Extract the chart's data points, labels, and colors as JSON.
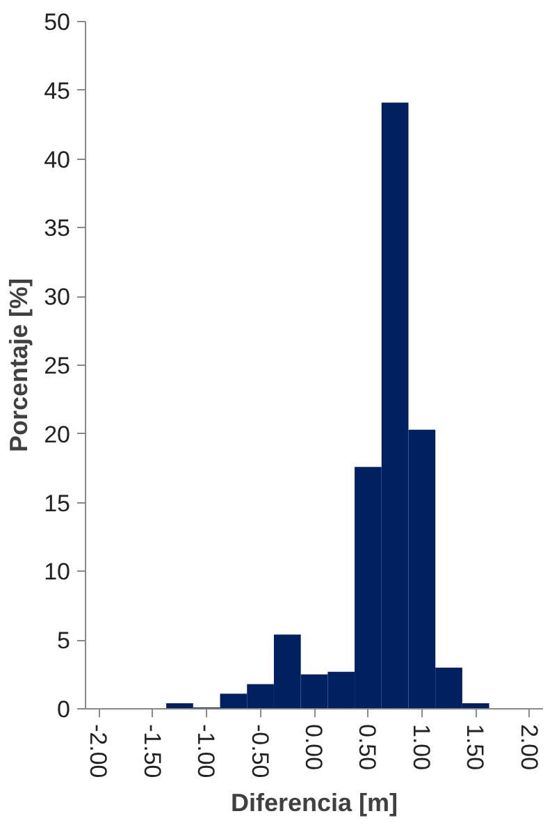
{
  "chart_data": {
    "type": "histogram",
    "xlabel": "Diferencia [m]",
    "ylabel": "Porcentaje [%]",
    "bins": [
      -2.125,
      -1.875,
      -1.625,
      -1.375,
      -1.125,
      -0.875,
      -0.625,
      -0.375,
      -0.125,
      0.125,
      0.375,
      0.625,
      0.875,
      1.125,
      1.375,
      1.625,
      1.875,
      2.125
    ],
    "values": [
      0,
      0,
      0,
      0.4,
      0.1,
      1.1,
      1.8,
      5.4,
      2.5,
      2.7,
      17.6,
      44.1,
      20.3,
      3.0,
      0.4,
      0,
      0
    ],
    "color": "#002060",
    "xlim": [
      -2.125,
      2.125
    ],
    "xticks": [
      {
        "value": -2,
        "label": "-2.00"
      },
      {
        "value": -1.5,
        "label": "-1.50"
      },
      {
        "value": -1,
        "label": "-1.00"
      },
      {
        "value": -0.5,
        "label": "-0.50"
      },
      {
        "value": 0,
        "label": "0.00"
      },
      {
        "value": 0.5,
        "label": "0.50"
      },
      {
        "value": 1,
        "label": "1.00"
      },
      {
        "value": 1.5,
        "label": "1.50"
      },
      {
        "value": 2,
        "label": "2.00"
      }
    ],
    "ylim": [
      0,
      50
    ],
    "yticks": [
      0,
      5,
      10,
      15,
      20,
      25,
      30,
      35,
      40,
      45,
      50
    ],
    "grid": false
  }
}
